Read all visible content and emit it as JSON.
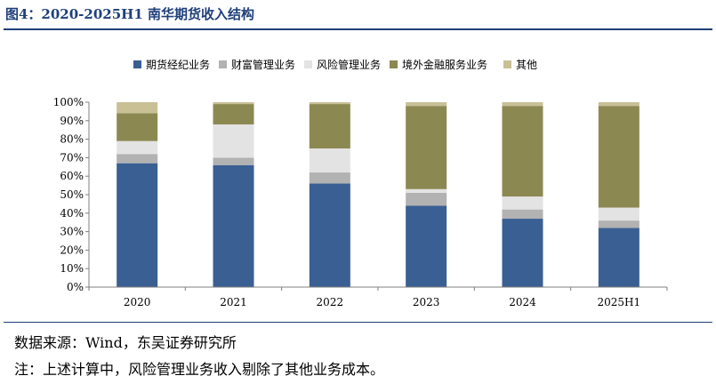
{
  "title": "图4：2020-2025H1 南华期货收入结构",
  "footer": {
    "source": "数据来源：Wind，东吴证券研究所",
    "note": "注：上述计算中，风险管理业务收入剔除了其他业务成本。"
  },
  "chart_data": {
    "type": "bar",
    "stacked": true,
    "categories": [
      "2020",
      "2021",
      "2022",
      "2023",
      "2024",
      "2025H1"
    ],
    "series": [
      {
        "name": "期货经纪业务",
        "color": "#3a5f93",
        "values": [
          67,
          66,
          56,
          44,
          37,
          32
        ]
      },
      {
        "name": "财富管理业务",
        "color": "#b2b2b2",
        "values": [
          5,
          4,
          6,
          7,
          5,
          4
        ]
      },
      {
        "name": "风险管理业务",
        "color": "#e3e3e3",
        "values": [
          7,
          18,
          13,
          2,
          7,
          7
        ]
      },
      {
        "name": "境外金融服务业务",
        "color": "#8c8852",
        "values": [
          15,
          11,
          24,
          45,
          49,
          55
        ]
      },
      {
        "name": "其他",
        "color": "#c9c096",
        "values": [
          6,
          1,
          1,
          2,
          2,
          2
        ]
      }
    ],
    "yticks": [
      "0%",
      "10%",
      "20%",
      "30%",
      "40%",
      "50%",
      "60%",
      "70%",
      "80%",
      "90%",
      "100%"
    ],
    "ylim": [
      0,
      100
    ],
    "legend_position": "top",
    "grid": false
  }
}
